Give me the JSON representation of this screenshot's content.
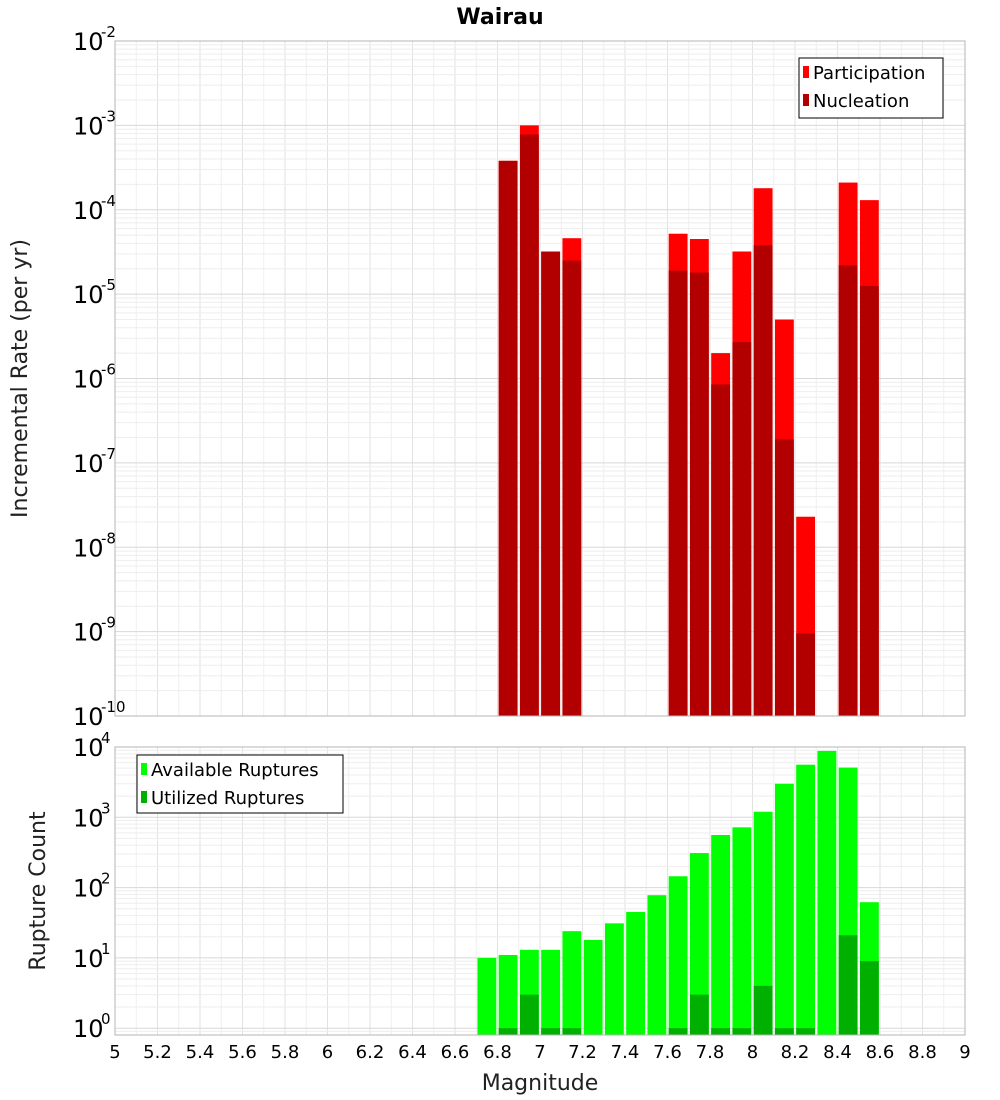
{
  "chart_data": [
    {
      "type": "bar",
      "title": "Wairau",
      "ylabel": "Incremental Rate (per yr)",
      "xlim": [
        5,
        9
      ],
      "ylim": [
        1e-10,
        0.01
      ],
      "y_scale": "log",
      "y_tick_exponents": [
        "-10",
        "-9",
        "-8",
        "-7",
        "-6",
        "-5",
        "-4",
        "-3",
        "-2"
      ],
      "grid": true,
      "legend_position": "top-right",
      "bin_width": 0.1,
      "x": [
        6.85,
        6.95,
        7.05,
        7.15,
        7.65,
        7.75,
        7.85,
        7.95,
        8.05,
        8.15,
        8.25,
        8.45,
        8.55
      ],
      "series": [
        {
          "name": "Participation",
          "color": "#ff0000",
          "values": [
            0.00038,
            0.001,
            3.2e-05,
            4.6e-05,
            5.2e-05,
            4.5e-05,
            2e-06,
            3.2e-05,
            0.00018,
            5e-06,
            2.3e-08,
            0.00021,
            0.00013
          ]
        },
        {
          "name": "Nucleation",
          "color": "#b20000",
          "values": [
            0.00038,
            0.00078,
            3.2e-05,
            2.5e-05,
            1.9e-05,
            1.8e-05,
            8.5e-07,
            2.7e-06,
            3.8e-05,
            1.9e-07,
            9.5e-10,
            2.2e-05,
            1.25e-05
          ]
        }
      ]
    },
    {
      "type": "bar",
      "xlabel": "Magnitude",
      "ylabel": "Rupture Count",
      "xlim": [
        5,
        9
      ],
      "ylim": [
        0.8,
        10000
      ],
      "y_scale": "log",
      "y_tick_exponents": [
        "0",
        "1",
        "2",
        "3",
        "4"
      ],
      "x_ticks": [
        "5",
        "5.2",
        "5.4",
        "5.6",
        "5.8",
        "6",
        "6.2",
        "6.4",
        "6.6",
        "6.8",
        "7",
        "7.2",
        "7.4",
        "7.6",
        "7.8",
        "8",
        "8.2",
        "8.4",
        "8.6",
        "8.8",
        "9"
      ],
      "grid": true,
      "legend_position": "top-left",
      "bin_width": 0.1,
      "x": [
        6.75,
        6.85,
        6.95,
        7.05,
        7.15,
        7.25,
        7.35,
        7.45,
        7.55,
        7.65,
        7.75,
        7.85,
        7.95,
        8.05,
        8.15,
        8.25,
        8.35,
        8.45,
        8.55
      ],
      "series": [
        {
          "name": "Available Ruptures",
          "color": "#00ff00",
          "values": [
            10,
            11,
            13,
            13,
            24,
            18,
            31,
            45,
            78,
            145,
            310,
            560,
            720,
            1200,
            3000,
            5600,
            8800,
            5100,
            62
          ]
        },
        {
          "name": "Utilized Ruptures",
          "color": "#00b000",
          "values": [
            0,
            1,
            3,
            1,
            1,
            0,
            0,
            0,
            0,
            1,
            3,
            1,
            1,
            4,
            1,
            1,
            0,
            21,
            9
          ]
        }
      ]
    }
  ]
}
